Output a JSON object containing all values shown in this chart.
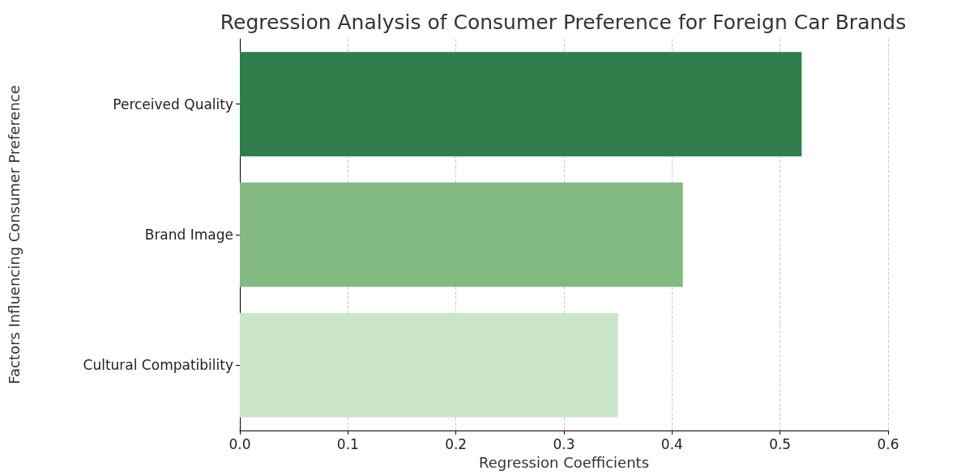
{
  "chart_data": {
    "type": "bar",
    "orientation": "horizontal",
    "title": "Regression Analysis of Consumer Preference for Foreign Car Brands",
    "xlabel": "Regression Coefficients",
    "ylabel": "Factors Influencing Consumer Preference",
    "categories": [
      "Perceived Quality",
      "Brand Image",
      "Cultural Compatibility"
    ],
    "values": [
      0.52,
      0.41,
      0.35
    ],
    "colors": [
      "#2e7d4b",
      "#81b981",
      "#cce5c8"
    ],
    "xlim": [
      0,
      0.6
    ],
    "xticks": [
      {
        "value": 0,
        "label": "0.0"
      },
      {
        "value": 0.1,
        "label": "0.1"
      },
      {
        "value": 0.2,
        "label": "0.2"
      },
      {
        "value": 0.3,
        "label": "0.3"
      },
      {
        "value": 0.4,
        "label": "0.4"
      },
      {
        "value": 0.5,
        "label": "0.5"
      },
      {
        "value": 0.6,
        "label": "0.6"
      }
    ],
    "grid": "x"
  }
}
